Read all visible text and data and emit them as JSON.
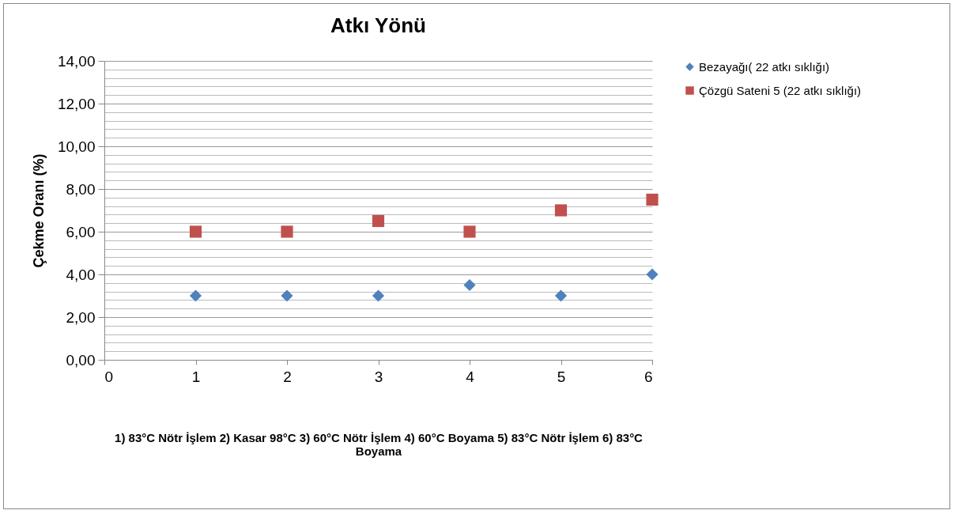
{
  "chart_data": {
    "type": "scatter",
    "title": "Atkı Yönü",
    "ylabel": "Çekme Oranı (%)",
    "xlabel": "1) 83°C Nötr İşlem   2) Kasar 98°C   3) 60°C Nötr İşlem   4) 60°C Boyama   5) 83°C Nötr İşlem   6) 83°C Boyama",
    "x": [
      1,
      2,
      3,
      4,
      5,
      6
    ],
    "series": [
      {
        "name": "Bezayağı( 22 atkı sıklığı)",
        "color": "#4f81bd",
        "marker": "diamond",
        "values": [
          3,
          3,
          3,
          3.5,
          3,
          4
        ]
      },
      {
        "name": "Çözgü Sateni 5 (22 atkı sıklığı)",
        "color": "#c0504d",
        "marker": "square",
        "values": [
          6,
          6,
          6.5,
          6,
          7,
          7.5
        ]
      }
    ],
    "xlim": [
      0,
      6
    ],
    "xticks": [
      0,
      1,
      2,
      3,
      4,
      5,
      6
    ],
    "ylim": [
      0,
      14
    ],
    "yticks": [
      {
        "value": 0,
        "label": "0,00"
      },
      {
        "value": 0.4,
        "label": null
      },
      {
        "value": 0.8,
        "label": null
      },
      {
        "value": 1.2,
        "label": null
      },
      {
        "value": 1.6,
        "label": null
      },
      {
        "value": 2,
        "label": "2,00"
      },
      {
        "value": 2.4,
        "label": null
      },
      {
        "value": 2.8,
        "label": null
      },
      {
        "value": 3.2,
        "label": null
      },
      {
        "value": 3.6,
        "label": null
      },
      {
        "value": 4,
        "label": "4,00"
      },
      {
        "value": 4.4,
        "label": null
      },
      {
        "value": 4.8,
        "label": null
      },
      {
        "value": 5.2,
        "label": null
      },
      {
        "value": 5.6,
        "label": null
      },
      {
        "value": 6,
        "label": "6,00"
      },
      {
        "value": 6.4,
        "label": null
      },
      {
        "value": 6.8,
        "label": null
      },
      {
        "value": 7.2,
        "label": null
      },
      {
        "value": 7.6,
        "label": null
      },
      {
        "value": 8,
        "label": "8,00"
      },
      {
        "value": 8.4,
        "label": null
      },
      {
        "value": 8.8,
        "label": null
      },
      {
        "value": 9.2,
        "label": null
      },
      {
        "value": 9.6,
        "label": null
      },
      {
        "value": 10,
        "label": "10,00"
      },
      {
        "value": 10.4,
        "label": null
      },
      {
        "value": 10.8,
        "label": null
      },
      {
        "value": 11.2,
        "label": null
      },
      {
        "value": 11.6,
        "label": null
      },
      {
        "value": 12,
        "label": "12,00"
      },
      {
        "value": 12.4,
        "label": null
      },
      {
        "value": 12.8,
        "label": null
      },
      {
        "value": 13.2,
        "label": null
      },
      {
        "value": 13.6,
        "label": null
      },
      {
        "value": 14,
        "label": "14,00"
      }
    ],
    "grid": "y",
    "legend": "right"
  }
}
